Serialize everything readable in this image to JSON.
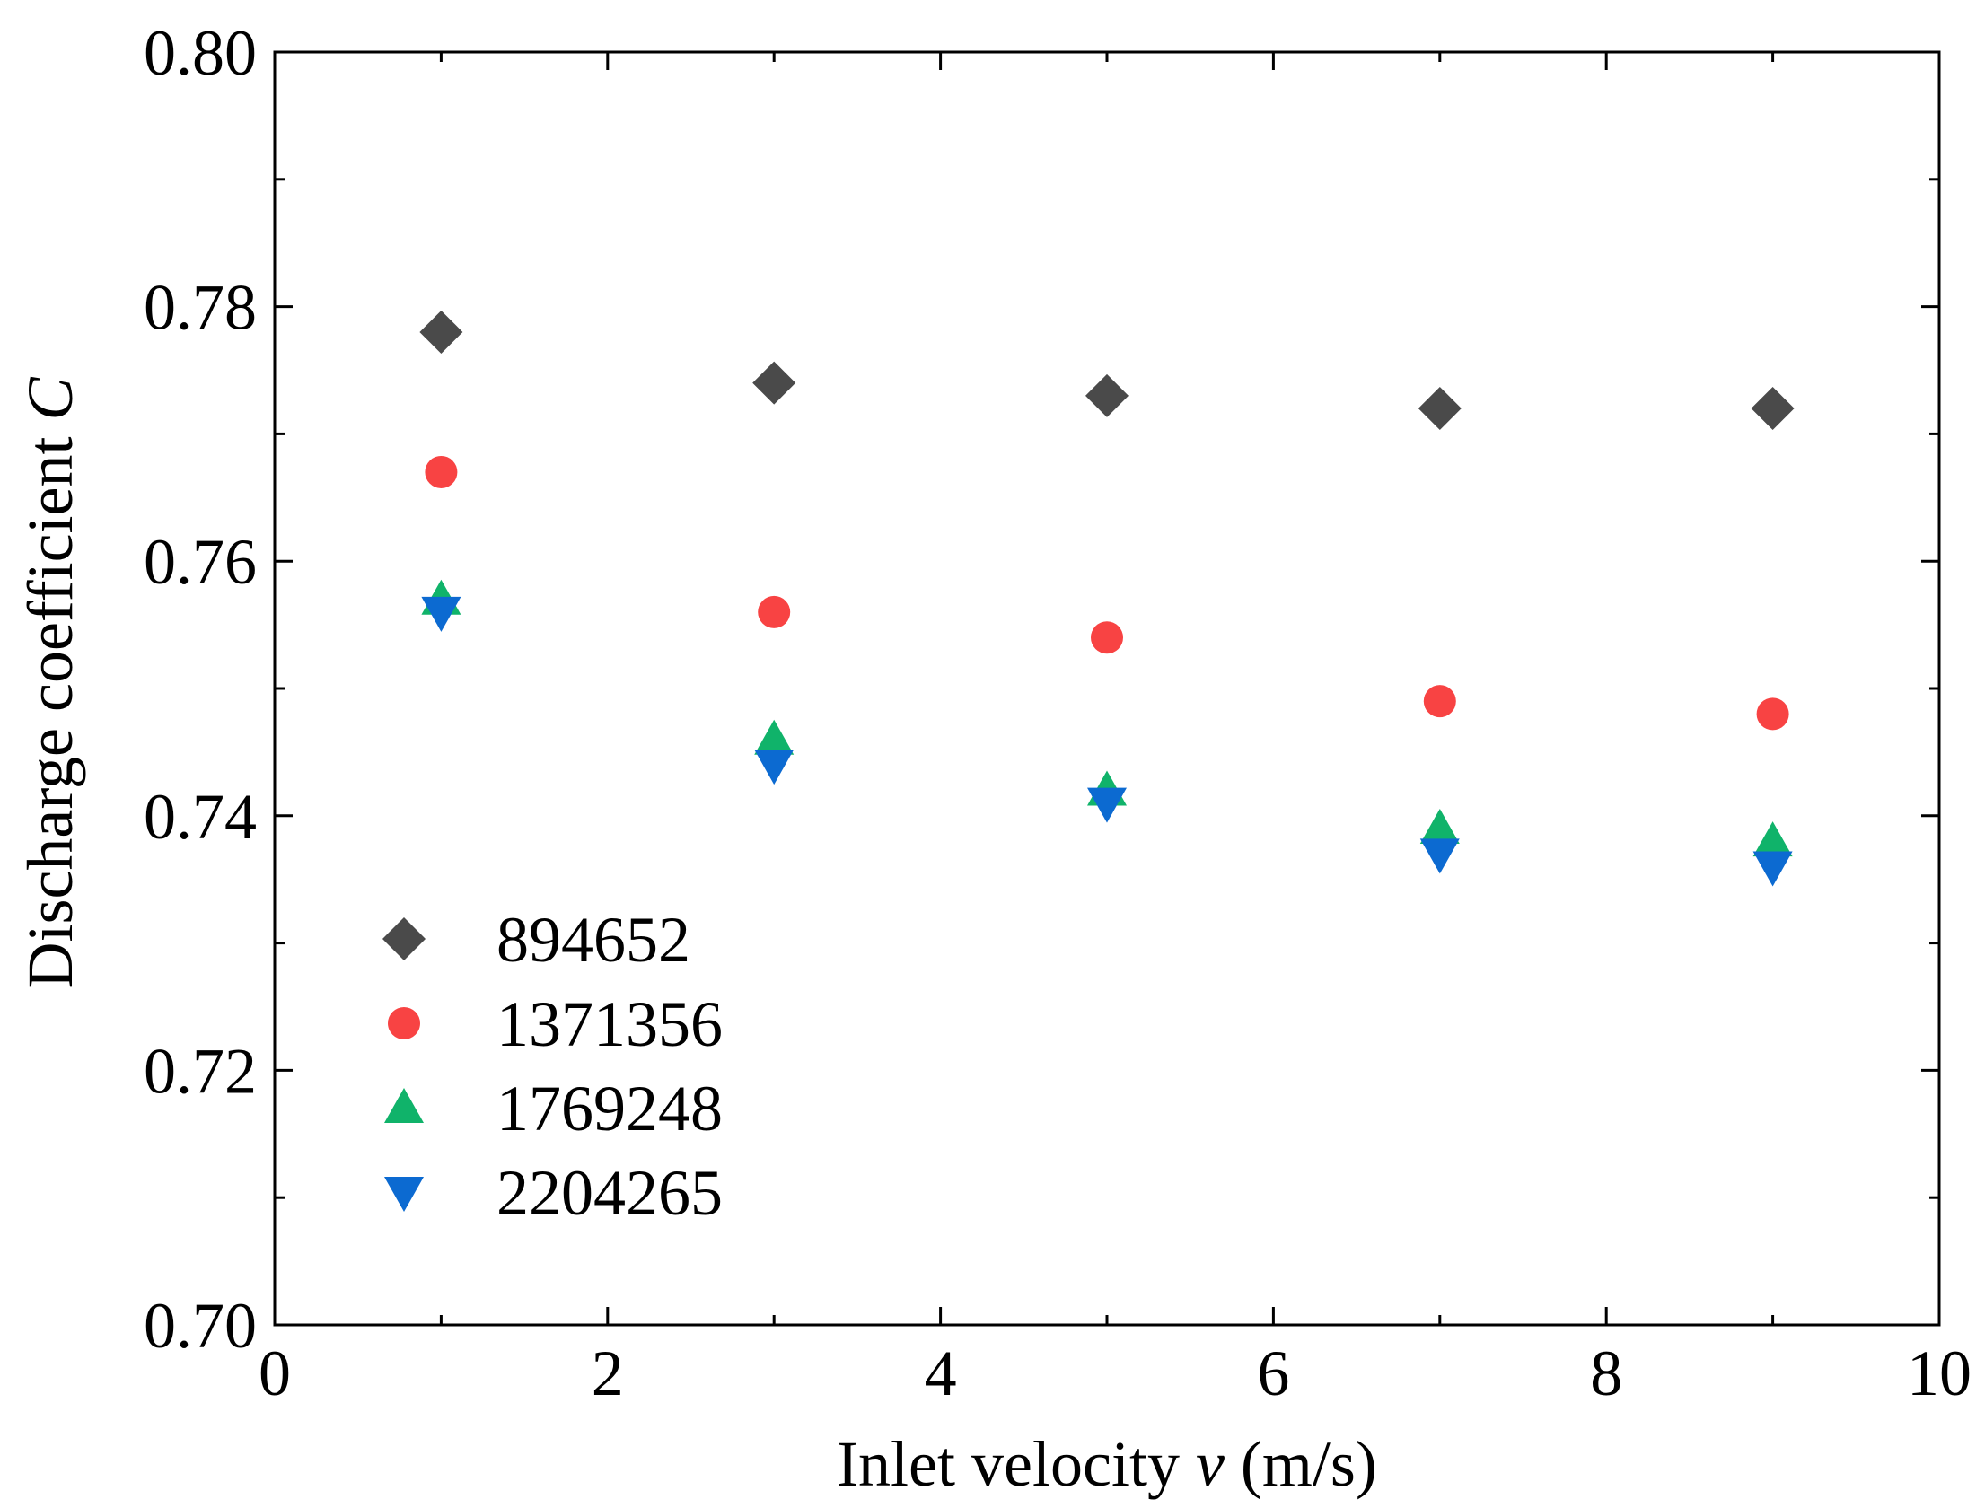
{
  "chart_data": {
    "type": "scatter",
    "xlabel": "Inlet velocity ",
    "xlabel_var": "v",
    "xlabel_unit": " (m/s)",
    "ylabel": "Discharge coefficient ",
    "ylabel_var": "C",
    "xlim": [
      0,
      10
    ],
    "ylim": [
      0.7,
      0.8
    ],
    "x_ticks": [
      0,
      2,
      4,
      6,
      8,
      10
    ],
    "x_tick_labels": [
      "0",
      "2",
      "4",
      "6",
      "8",
      "10"
    ],
    "x_minor_ticks": [
      1,
      3,
      5,
      7,
      9
    ],
    "y_ticks": [
      0.7,
      0.72,
      0.74,
      0.76,
      0.78,
      0.8
    ],
    "y_tick_labels": [
      "0.70",
      "0.72",
      "0.74",
      "0.76",
      "0.78",
      "0.80"
    ],
    "y_minor_ticks": [
      0.71,
      0.73,
      0.75,
      0.77,
      0.79
    ],
    "grid": false,
    "legend_position": "lower-left",
    "x": [
      1,
      3,
      5,
      7,
      9
    ],
    "series": [
      {
        "name": "894652",
        "marker": "diamond",
        "color": "#4a4a4a",
        "values": [
          0.778,
          0.774,
          0.773,
          0.772,
          0.772
        ]
      },
      {
        "name": "1371356",
        "marker": "circle",
        "color": "#f84343",
        "values": [
          0.767,
          0.756,
          0.754,
          0.749,
          0.748
        ]
      },
      {
        "name": "1769248",
        "marker": "triangle-up",
        "color": "#10b36a",
        "values": [
          0.757,
          0.746,
          0.742,
          0.739,
          0.738
        ]
      },
      {
        "name": "2204265",
        "marker": "triangle-down",
        "color": "#0c6ad1",
        "values": [
          0.756,
          0.744,
          0.741,
          0.737,
          0.736
        ]
      }
    ]
  }
}
